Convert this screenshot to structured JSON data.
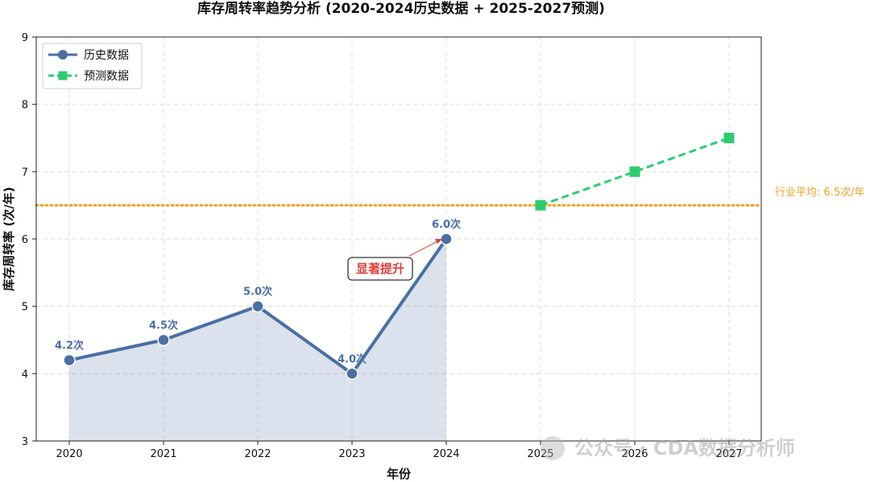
{
  "chart_data": {
    "type": "line",
    "title": "库存周转率趋势分析 (2020-2024历史数据 + 2025-2027预测)",
    "xlabel": "年份",
    "ylabel": "库存周转率 (次/年)",
    "ylim": [
      3,
      9
    ],
    "yticks": [
      "3",
      "4",
      "5",
      "6",
      "7",
      "8",
      "9"
    ],
    "categories": [
      "2020",
      "2021",
      "2022",
      "2023",
      "2024",
      "2025",
      "2026",
      "2027"
    ],
    "grid": true,
    "legend_position": "upper-left",
    "series": [
      {
        "name": "历史数据",
        "style": "solid-line-circle-markers-area-fill",
        "color": "#4a6fa5",
        "x": [
          "2020",
          "2021",
          "2022",
          "2023",
          "2024"
        ],
        "values": [
          4.2,
          4.5,
          5.0,
          4.0,
          6.0
        ],
        "labels": [
          "4.2次",
          "4.5次",
          "5.0次",
          "4.0次",
          "6.0次"
        ]
      },
      {
        "name": "预测数据",
        "style": "dashed-line-square-markers",
        "color": "#2ecc71",
        "x": [
          "2025",
          "2026",
          "2027"
        ],
        "values": [
          6.5,
          7.0,
          7.5
        ]
      }
    ],
    "reference_line": {
      "value": 6.5,
      "label": "行业平均: 6.5次/年",
      "color": "#f0a020",
      "style": "dotted"
    },
    "annotation": {
      "text": "显著提升",
      "target": "2024",
      "color": "#e0403a"
    }
  },
  "watermark": {
    "text": "公众号 · CDA数据分析师"
  }
}
